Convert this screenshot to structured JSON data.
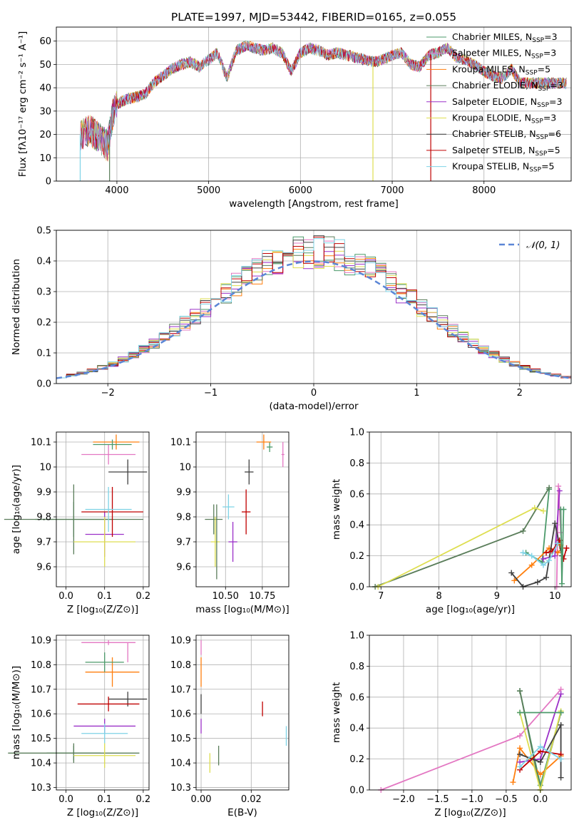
{
  "figure": {
    "title": "PLATE=1997, MJD=53442, FIBERID=0165, z=0.055"
  },
  "models": [
    {
      "name": "Chabrier MILES, N$_{SSP}$=3",
      "label": "Chabrier MILES, N",
      "nssp": "3",
      "color": "#4b9a6a"
    },
    {
      "name": "Salpeter MILES, N$_{SSP}$=3",
      "label": "Salpeter MILES, N",
      "nssp": "3",
      "color": "#e377c2"
    },
    {
      "name": "Kroupa MILES, N$_{SSP}$=5",
      "label": "Kroupa MILES, N",
      "nssp": "5",
      "color": "#ff7f0e"
    },
    {
      "name": "Chabrier ELODIE, N$_{SSP}$=3",
      "label": "Chabrier ELODIE, N",
      "nssp": "3",
      "color": "#5a7d5a"
    },
    {
      "name": "Salpeter ELODIE, N$_{SSP}$=3",
      "label": "Salpeter ELODIE, N",
      "nssp": "3",
      "color": "#9b30c8"
    },
    {
      "name": "Kroupa ELODIE, N$_{SSP}$=3",
      "label": "Kroupa ELODIE, N",
      "nssp": "3",
      "color": "#dede50"
    },
    {
      "name": "Chabrier STELIB, N$_{SSP}$=6",
      "label": "Chabrier STELIB, N",
      "nssp": "6",
      "color": "#404040"
    },
    {
      "name": "Salpeter STELIB, N$_{SSP}$=5",
      "label": "Salpeter STELIB, N",
      "nssp": "5",
      "color": "#c00000"
    },
    {
      "name": "Kroupa STELIB, N$_{SSP}$=5",
      "label": "Kroupa STELIB, N",
      "nssp": "5",
      "color": "#7ed3e6"
    }
  ],
  "chart_data": [
    {
      "type": "line",
      "id": "spectrum",
      "title": "PLATE=1997, MJD=53442, FIBERID=0165, z=0.055",
      "xlabel": "wavelength [Angstrom, rest frame]",
      "ylabel": "Flux [f$_\\lambda$10$^{-17}$ erg cm$^{-2}$ s$^{-1}$ A$^{-1}$]",
      "xlim": [
        3340,
        8950
      ],
      "ylim": [
        0,
        66
      ],
      "xticks": [
        4000,
        5000,
        6000,
        7000,
        8000
      ],
      "yticks": [
        0,
        10,
        20,
        30,
        40,
        50,
        60
      ],
      "legend": "upper right",
      "x": [
        3600,
        3700,
        3800,
        3900,
        3950,
        4000,
        4100,
        4200,
        4300,
        4400,
        4500,
        4600,
        4700,
        4800,
        4900,
        5000,
        5100,
        5200,
        5300,
        5400,
        5500,
        5600,
        5700,
        5800,
        5900,
        6000,
        6100,
        6200,
        6300,
        6400,
        6500,
        6600,
        6700,
        6800,
        6900,
        7000,
        7100,
        7200,
        7300,
        7400,
        7500,
        7600,
        7700,
        7800,
        7900,
        8000,
        8100,
        8200,
        8300,
        8400
      ],
      "y": [
        20,
        22,
        19,
        15,
        28,
        33,
        35,
        36,
        37,
        42,
        45,
        48,
        50,
        51,
        49,
        52,
        55,
        44,
        56,
        58,
        57,
        56,
        57,
        55,
        47,
        55,
        57,
        56,
        54,
        55,
        54,
        53,
        52,
        51,
        52,
        54,
        55,
        50,
        49,
        54,
        55,
        57,
        53,
        52,
        50,
        47,
        45,
        44,
        48,
        42
      ],
      "spikes": [
        {
          "x": 3600,
          "y": 0,
          "model": 8
        },
        {
          "x": 3920,
          "y": 0,
          "model": 3
        },
        {
          "x": 6790,
          "y": 0,
          "model": 5
        },
        {
          "x": 7420,
          "y": 0,
          "model": 7
        }
      ]
    },
    {
      "type": "bar",
      "id": "residuals",
      "xlabel": "(data-model)/error",
      "ylabel": "Normed distribution",
      "xlim": [
        -2.5,
        2.5
      ],
      "ylim": [
        0,
        0.5
      ],
      "xticks": [
        -2,
        -1,
        0,
        1,
        2
      ],
      "xtick_labels": [
        "−2",
        "−1",
        "0",
        "1",
        "2"
      ],
      "yticks": [
        0,
        0.1,
        0.2,
        0.3,
        0.4,
        0.5
      ],
      "ytick_labels": [
        "0.0",
        "0.1",
        "0.2",
        "0.3",
        "0.4",
        "0.5"
      ],
      "legend_label": "$\\mathcal{N}(0,1)$",
      "legend": "upper right",
      "bin_width": 0.1,
      "bin_start": -2.5
    },
    {
      "type": "scatter",
      "id": "age-vs-z",
      "xlabel": "Z [log$_{10}$(Z/Z$_\\odot$)]",
      "ylabel": "age  [log$_{10}$(age/yr)]",
      "xlim": [
        -0.025,
        0.215
      ],
      "ylim": [
        9.52,
        10.14
      ],
      "xticks": [
        0.0,
        0.1,
        0.2
      ],
      "xtick_labels": [
        "0.0",
        "0.1",
        "0.2"
      ],
      "yticks": [
        9.6,
        9.7,
        9.8,
        9.9,
        10.0,
        10.1
      ],
      "points": [
        {
          "model": 0,
          "x": 0.02,
          "y": 9.79,
          "xerr": 0.1,
          "yerr": 0.07
        },
        {
          "model": 1,
          "x": 0.11,
          "y": 10.05,
          "xerr": 0.07,
          "yerr": 0.04
        },
        {
          "model": 2,
          "x": 0.13,
          "y": 10.1,
          "xerr": 0.06,
          "yerr": 0.03
        },
        {
          "model": 3,
          "x": 0.02,
          "y": 9.79,
          "xerr": 0.18,
          "yerr": 0.14
        },
        {
          "model": 4,
          "x": 0.1,
          "y": 9.73,
          "xerr": 0.05,
          "yerr": 0.09
        },
        {
          "model": 5,
          "x": 0.1,
          "y": 9.7,
          "xerr": 0.08,
          "yerr": 0.1
        },
        {
          "model": 6,
          "x": 0.16,
          "y": 9.98,
          "xerr": 0.05,
          "yerr": 0.05
        },
        {
          "model": 7,
          "x": 0.12,
          "y": 9.82,
          "xerr": 0.08,
          "yerr": 0.1
        },
        {
          "model": 8,
          "x": 0.11,
          "y": 9.83,
          "xerr": 0.06,
          "yerr": 0.09
        },
        {
          "model": 0,
          "x": 0.12,
          "y": 10.09,
          "xerr": 0.05,
          "yerr": 0.02
        }
      ]
    },
    {
      "type": "scatter",
      "id": "age-vs-mass",
      "xlabel": "mass [log$_{10}$(M/M$_\\odot$)]",
      "ylabel": "",
      "xlim": [
        10.3,
        10.93
      ],
      "ylim": [
        9.52,
        10.14
      ],
      "xticks": [
        10.5,
        10.75
      ],
      "xtick_labels": [
        "10.50",
        "10.75"
      ],
      "yticks": [
        9.6,
        9.7,
        9.8,
        9.9,
        10.0,
        10.1
      ],
      "points": [
        {
          "model": 0,
          "x": 10.8,
          "y": 10.08,
          "xerr": 0.02,
          "yerr": 0.02
        },
        {
          "model": 1,
          "x": 10.89,
          "y": 10.05,
          "xerr": 0.01,
          "yerr": 0.05
        },
        {
          "model": 2,
          "x": 10.76,
          "y": 10.1,
          "xerr": 0.05,
          "yerr": 0.03
        },
        {
          "model": 3,
          "x": 10.42,
          "y": 9.79,
          "xerr": 0.06,
          "yerr": 0.06
        },
        {
          "model": 4,
          "x": 10.55,
          "y": 9.7,
          "xerr": 0.03,
          "yerr": 0.08
        },
        {
          "model": 5,
          "x": 10.43,
          "y": 9.7,
          "xerr": 0.03,
          "yerr": 0.1
        },
        {
          "model": 6,
          "x": 10.66,
          "y": 9.98,
          "xerr": 0.03,
          "yerr": 0.05
        },
        {
          "model": 7,
          "x": 10.64,
          "y": 9.82,
          "xerr": 0.03,
          "yerr": 0.09
        },
        {
          "model": 8,
          "x": 10.52,
          "y": 9.84,
          "xerr": 0.04,
          "yerr": 0.05
        },
        {
          "model": 3,
          "x": 10.44,
          "y": 9.7,
          "xerr": 0.0,
          "yerr": 0.15
        }
      ]
    },
    {
      "type": "line",
      "id": "mass-weight-vs-age",
      "xlabel": "age  [log$_{10}$(age/yr)]",
      "ylabel": "mass weight",
      "xlim": [
        6.8,
        10.28
      ],
      "ylim": [
        0,
        1.0
      ],
      "xticks": [
        7,
        8,
        9,
        10
      ],
      "yticks": [
        0,
        0.2,
        0.4,
        0.6,
        0.8,
        1.0
      ],
      "ytick_labels": [
        "0.0",
        "0.2",
        "0.4",
        "0.6",
        "0.8",
        "1.0"
      ],
      "series": [
        {
          "model": 0,
          "x": [
            9.5,
            9.78,
            9.9
          ],
          "y": [
            0.22,
            0.16,
            0.63
          ]
        },
        {
          "model": 1,
          "x": [
            10.03,
            10.06,
            10.1
          ],
          "y": [
            0.0,
            0.65,
            0.35
          ]
        },
        {
          "model": 2,
          "x": [
            9.3,
            9.6,
            9.9,
            10.05,
            10.12
          ],
          "y": [
            0.04,
            0.14,
            0.25,
            0.22,
            0.25
          ]
        },
        {
          "model": 3,
          "x": [
            6.9,
            9.45,
            9.9
          ],
          "y": [
            0.0,
            0.36,
            0.64
          ]
        },
        {
          "model": 4,
          "x": [
            9.8,
            10.0,
            10.08
          ],
          "y": [
            0.18,
            0.2,
            0.62
          ]
        },
        {
          "model": 5,
          "x": [
            6.95,
            9.65,
            9.8
          ],
          "y": [
            0.0,
            0.51,
            0.49
          ]
        },
        {
          "model": 6,
          "x": [
            9.25,
            9.45,
            9.7,
            9.85,
            10.0,
            10.12
          ],
          "y": [
            0.09,
            0.0,
            0.03,
            0.06,
            0.41,
            0.2
          ]
        },
        {
          "model": 7,
          "x": [
            9.85,
            9.95,
            10.08,
            10.15,
            10.2
          ],
          "y": [
            0.22,
            0.23,
            0.3,
            0.18,
            0.25
          ]
        },
        {
          "model": 8,
          "x": [
            9.45,
            9.6,
            9.8,
            9.9,
            10.05
          ],
          "y": [
            0.22,
            0.2,
            0.14,
            0.17,
            0.28
          ]
        },
        {
          "model": 2,
          "x": [
            10.1
          ],
          "y": [
            0.27
          ]
        },
        {
          "model": 0,
          "x": [
            10.1,
            10.12,
            10.15
          ],
          "y": [
            0.5,
            0.02,
            0.5
          ]
        }
      ]
    },
    {
      "type": "scatter",
      "id": "mass-vs-z",
      "xlabel": "Z [log$_{10}$(Z/Z$_\\odot$)]",
      "ylabel": "mass [log$_{10}$(M/M$_\\odot$)]",
      "xlim": [
        -0.025,
        0.215
      ],
      "ylim": [
        10.29,
        10.92
      ],
      "xticks": [
        0.0,
        0.1,
        0.2
      ],
      "xtick_labels": [
        "0.0",
        "0.1",
        "0.2"
      ],
      "yticks": [
        10.3,
        10.4,
        10.5,
        10.6,
        10.7,
        10.8,
        10.9
      ],
      "points": [
        {
          "model": 0,
          "x": 0.02,
          "y": 10.44,
          "xerr": 0.07,
          "yerr": 0.03
        },
        {
          "model": 1,
          "x": 0.11,
          "y": 10.89,
          "xerr": 0.07,
          "yerr": 0.01
        },
        {
          "model": 2,
          "x": 0.12,
          "y": 10.77,
          "xerr": 0.07,
          "yerr": 0.06
        },
        {
          "model": 3,
          "x": 0.02,
          "y": 10.44,
          "xerr": 0.17,
          "yerr": 0.04
        },
        {
          "model": 4,
          "x": 0.1,
          "y": 10.55,
          "xerr": 0.08,
          "yerr": 0.03
        },
        {
          "model": 5,
          "x": 0.1,
          "y": 10.43,
          "xerr": 0.08,
          "yerr": 0.05
        },
        {
          "model": 6,
          "x": 0.16,
          "y": 10.66,
          "xerr": 0.05,
          "yerr": 0.03
        },
        {
          "model": 7,
          "x": 0.11,
          "y": 10.64,
          "xerr": 0.08,
          "yerr": 0.03
        },
        {
          "model": 8,
          "x": 0.1,
          "y": 10.52,
          "xerr": 0.06,
          "yerr": 0.04
        },
        {
          "model": 0,
          "x": 0.1,
          "y": 10.81,
          "xerr": 0.05,
          "yerr": 0.04
        },
        {
          "model": 1,
          "x": 0.16,
          "y": 10.85,
          "xerr": 0.0,
          "yerr": 0.04
        }
      ]
    },
    {
      "type": "scatter",
      "id": "mass-vs-ebv",
      "xlabel": "E(B-V)",
      "ylabel": "",
      "xlim": [
        -0.002,
        0.035
      ],
      "ylim": [
        10.29,
        10.92
      ],
      "xticks": [
        0.0,
        0.02
      ],
      "xtick_labels": [
        "0.00",
        "0.02"
      ],
      "yticks": [
        10.3,
        10.4,
        10.5,
        10.6,
        10.7,
        10.8,
        10.9
      ],
      "points": [
        {
          "model": 1,
          "x": 0.0,
          "y": 10.87,
          "xerr": 0,
          "yerr": 0.03
        },
        {
          "model": 2,
          "x": 0.0,
          "y": 10.77,
          "xerr": 0,
          "yerr": 0.06
        },
        {
          "model": 6,
          "x": 0.0,
          "y": 10.64,
          "xerr": 0,
          "yerr": 0.04
        },
        {
          "model": 4,
          "x": 0.0,
          "y": 10.55,
          "xerr": 0,
          "yerr": 0.03
        },
        {
          "model": 5,
          "x": 0.0035,
          "y": 10.4,
          "xerr": 0,
          "yerr": 0.04
        },
        {
          "model": 3,
          "x": 0.007,
          "y": 10.43,
          "xerr": 0,
          "yerr": 0.04
        },
        {
          "model": 7,
          "x": 0.0245,
          "y": 10.62,
          "xerr": 0,
          "yerr": 0.03
        },
        {
          "model": 8,
          "x": 0.034,
          "y": 10.51,
          "xerr": 0,
          "yerr": 0.04
        }
      ]
    },
    {
      "type": "line",
      "id": "mass-weight-vs-z",
      "xlabel": "Z [log$_{10}$(Z/Z$_\\odot$)]",
      "ylabel": "mass weight",
      "xlim": [
        -2.5,
        0.45
      ],
      "ylim": [
        0,
        1.0
      ],
      "xticks": [
        -2.0,
        -1.5,
        -1.0,
        -0.5,
        0.0
      ],
      "xtick_labels": [
        "−2.0",
        "−1.5",
        "−1.0",
        "−0.5",
        "0.0"
      ],
      "yticks": [
        0,
        0.2,
        0.4,
        0.6,
        0.8,
        1.0
      ],
      "ytick_labels": [
        "0.0",
        "0.2",
        "0.4",
        "0.6",
        "0.8",
        "1.0"
      ],
      "series": [
        {
          "model": 0,
          "x": [
            -0.3,
            0.0,
            0.3
          ],
          "y": [
            0.64,
            0.03,
            0.5
          ]
        },
        {
          "model": 1,
          "x": [
            -2.33,
            -0.3,
            0.3
          ],
          "y": [
            0.0,
            0.35,
            0.65
          ]
        },
        {
          "model": 2,
          "x": [
            -0.4,
            -0.3,
            0.0,
            0.3
          ],
          "y": [
            0.05,
            0.27,
            0.1,
            0.22
          ]
        },
        {
          "model": 3,
          "x": [
            -0.3,
            0.0,
            0.3
          ],
          "y": [
            0.64,
            0.0,
            0.5
          ]
        },
        {
          "model": 4,
          "x": [
            -0.3,
            0.0,
            0.3
          ],
          "y": [
            0.18,
            0.2,
            0.62
          ]
        },
        {
          "model": 5,
          "x": [
            -0.3,
            0.0,
            0.3
          ],
          "y": [
            0.5,
            0.0,
            0.51
          ]
        },
        {
          "model": 6,
          "x": [
            -0.3,
            0.0,
            0.3,
            0.3
          ],
          "y": [
            0.23,
            0.18,
            0.42,
            0.08
          ]
        },
        {
          "model": 7,
          "x": [
            -0.3,
            0.0,
            0.3
          ],
          "y": [
            0.13,
            0.25,
            0.23
          ]
        },
        {
          "model": 8,
          "x": [
            -0.3,
            0.0,
            0.3
          ],
          "y": [
            0.15,
            0.28,
            0.2
          ]
        },
        {
          "model": 0,
          "x": [
            -0.3,
            0.3
          ],
          "y": [
            0.5,
            0.5
          ]
        }
      ]
    }
  ]
}
